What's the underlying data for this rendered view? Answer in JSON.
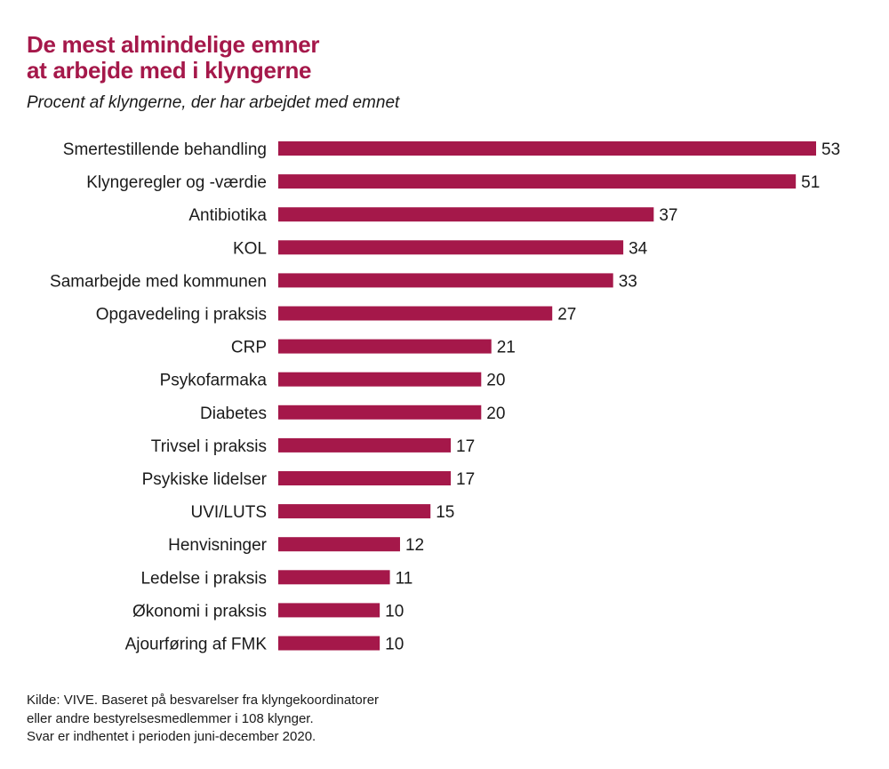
{
  "chart_data": {
    "type": "bar",
    "orientation": "horizontal",
    "title": [
      "De mest almindelige emner",
      "at arbejde med i klyngerne"
    ],
    "subtitle": "Procent af klyngerne, der har arbejdet med emnet",
    "categories": [
      "Smertestillende behandling",
      "Klyngeregler og -værdie",
      "Antibiotika",
      "KOL",
      "Samarbejde med kommunen",
      "Opgavedeling i praksis",
      "CRP",
      "Psykofarmaka",
      "Diabetes",
      "Trivsel i praksis",
      "Psykiske lidelser",
      "UVI/LUTS",
      "Henvisninger",
      "Ledelse i praksis",
      "Økonomi i praksis",
      "Ajourføring af FMK"
    ],
    "values": [
      53,
      51,
      37,
      34,
      33,
      27,
      21,
      20,
      20,
      17,
      17,
      15,
      12,
      11,
      10,
      10
    ],
    "xlim": [
      0,
      53
    ],
    "grid": false,
    "bar_color": "#a5184a",
    "footer": [
      "Kilde: VIVE. Baseret på besvarelser fra klyngekoordinatorer",
      "eller andre bestyrelsesmedlemmer i 108 klynger.",
      "Svar er indhentet i perioden juni-december 2020."
    ]
  }
}
